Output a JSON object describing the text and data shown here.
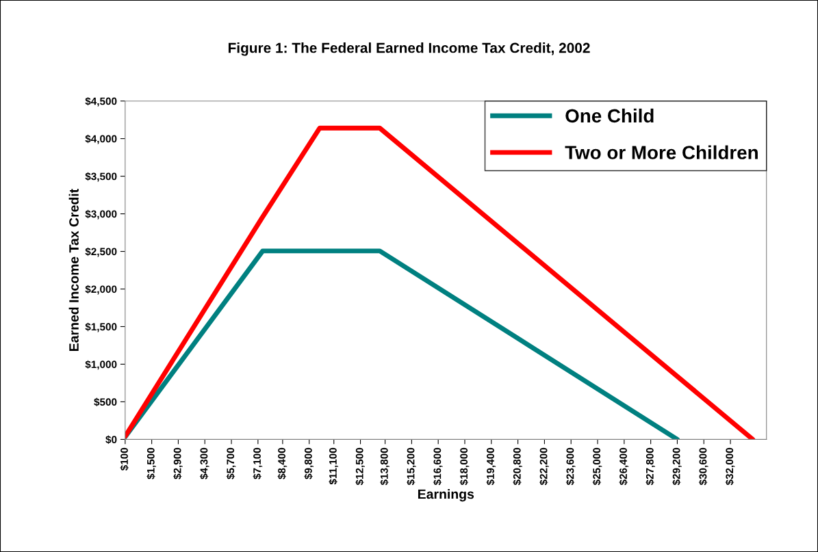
{
  "chart_data": {
    "type": "line",
    "title": "Figure 1: The Federal Earned Income Tax Credit, 2002",
    "xlabel": "Earnings",
    "ylabel": "Earned Income Tax Credit",
    "series": [
      {
        "name": "One Child",
        "color": "#008080",
        "x": [
          100,
          7350,
          13520,
          29201
        ],
        "values": [
          34,
          2506,
          2506,
          0
        ]
      },
      {
        "name": "Two or More Children",
        "color": "#ff0000",
        "x": [
          100,
          7300,
          10350,
          13520,
          33178
        ],
        "values": [
          40,
          2940,
          4140,
          4140,
          0
        ]
      }
    ],
    "xlim": [
      100,
      33900
    ],
    "xticks": [
      {
        "value": 100,
        "label": "$100"
      },
      {
        "value": 1500,
        "label": "$1,500"
      },
      {
        "value": 2900,
        "label": "$2,900"
      },
      {
        "value": 4300,
        "label": "$4,300"
      },
      {
        "value": 5700,
        "label": "$5,700"
      },
      {
        "value": 7100,
        "label": "$7,100"
      },
      {
        "value": 8400,
        "label": "$8,400"
      },
      {
        "value": 9800,
        "label": "$9,800"
      },
      {
        "value": 11100,
        "label": "$11,100"
      },
      {
        "value": 12500,
        "label": "$12,500"
      },
      {
        "value": 13800,
        "label": "$13,800"
      },
      {
        "value": 15200,
        "label": "$15,200"
      },
      {
        "value": 16600,
        "label": "$16,600"
      },
      {
        "value": 18000,
        "label": "$18,000"
      },
      {
        "value": 19400,
        "label": "$19,400"
      },
      {
        "value": 20800,
        "label": "$20,800"
      },
      {
        "value": 22200,
        "label": "$22,200"
      },
      {
        "value": 23600,
        "label": "$23,600"
      },
      {
        "value": 25000,
        "label": "$25,000"
      },
      {
        "value": 26400,
        "label": "$26,400"
      },
      {
        "value": 27800,
        "label": "$27,800"
      },
      {
        "value": 29200,
        "label": "$29,200"
      },
      {
        "value": 30600,
        "label": "$30,600"
      },
      {
        "value": 32000,
        "label": "$32,000"
      }
    ],
    "ylim": [
      0,
      4500
    ],
    "yticks": [
      {
        "value": 0,
        "label": "$0"
      },
      {
        "value": 500,
        "label": "$500"
      },
      {
        "value": 1000,
        "label": "$1,000"
      },
      {
        "value": 1500,
        "label": "$1,500"
      },
      {
        "value": 2000,
        "label": "$2,000"
      },
      {
        "value": 2500,
        "label": "$2,500"
      },
      {
        "value": 3000,
        "label": "$3,000"
      },
      {
        "value": 3500,
        "label": "$3,500"
      },
      {
        "value": 4000,
        "label": "$4,000"
      },
      {
        "value": 4500,
        "label": "$4,500"
      }
    ],
    "grid": false,
    "legend": "top right",
    "marker": "none",
    "line_style": "solid"
  }
}
